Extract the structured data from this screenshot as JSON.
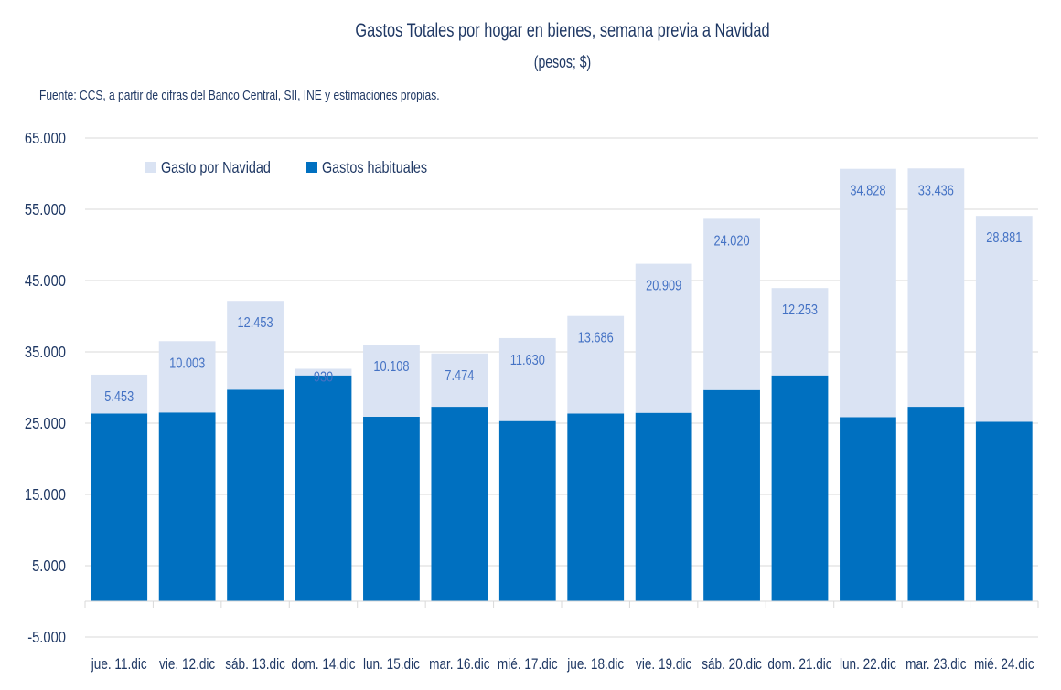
{
  "chart_data": {
    "type": "bar",
    "stacked": true,
    "title": "Gastos Totales por hogar en bienes, semana previa a Navidad",
    "subtitle": "(pesos; $)",
    "source": "Fuente: CCS, a partir de cifras del Banco Central, SII, INE y estimaciones propias.",
    "xlabel": "",
    "ylabel": "",
    "ylim": [
      -5000,
      65000
    ],
    "yticks": [
      -5000,
      5000,
      15000,
      25000,
      35000,
      45000,
      55000,
      65000
    ],
    "ytick_labels": [
      "-5.000",
      "5.000",
      "15.000",
      "25.000",
      "35.000",
      "45.000",
      "55.000",
      "65.000"
    ],
    "grid": true,
    "legend_position": "top-left",
    "categories": [
      "jue. 11.dic",
      "vie. 12.dic",
      "sáb. 13.dic",
      "dom. 14.dic",
      "lun. 15.dic",
      "mar. 16.dic",
      "mié. 17.dic",
      "jue. 18.dic",
      "vie. 19.dic",
      "sáb. 20.dic",
      "dom. 21.dic",
      "lun. 22.dic",
      "mar. 23.dic",
      "mié. 24.dic"
    ],
    "series": [
      {
        "name": "Gastos habituales",
        "color": "#0070c0",
        "values": [
          26350,
          26500,
          29700,
          31700,
          25900,
          27300,
          25300,
          26350,
          26450,
          29650,
          31700,
          25850,
          27300,
          25200
        ],
        "labels_shown": false
      },
      {
        "name": "Gasto por Navidad",
        "color": "#dae3f3",
        "values": [
          5453,
          10003,
          12453,
          930,
          10108,
          7474,
          11630,
          13686,
          20909,
          24020,
          12253,
          34828,
          33436,
          28881
        ],
        "data_labels": [
          "5.453",
          "10.003",
          "12.453",
          "930",
          "10.108",
          "7.474",
          "11.630",
          "13.686",
          "20.909",
          "24.020",
          "12.253",
          "34.828",
          "33.436",
          "28.881"
        ],
        "labels_shown": true
      }
    ],
    "legend": [
      {
        "name": "Gasto por Navidad",
        "color": "#dae3f3"
      },
      {
        "name": "Gastos habituales",
        "color": "#0070c0"
      }
    ]
  }
}
